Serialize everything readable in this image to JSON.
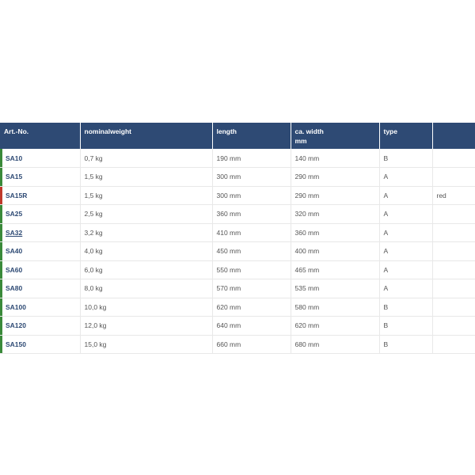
{
  "colors": {
    "header_bg": "#2e4a74",
    "stripe_green": "#3a8a3a",
    "stripe_red": "#c0392b"
  },
  "table": {
    "headers": [
      [
        "Art.-No."
      ],
      [
        "nominalweight"
      ],
      [
        "length"
      ],
      [
        "ca. width",
        "mm"
      ],
      [
        "type"
      ],
      [
        ""
      ]
    ],
    "rows": [
      {
        "art": "SA10",
        "weight": "0,7 kg",
        "length": "190 mm",
        "width": "140 mm",
        "type": "B",
        "note": "",
        "stripe": "green",
        "underline": false
      },
      {
        "art": "SA15",
        "weight": "1,5 kg",
        "length": "300 mm",
        "width": "290 mm",
        "type": "A",
        "note": "",
        "stripe": "green",
        "underline": false
      },
      {
        "art": "SA15R",
        "weight": "1,5 kg",
        "length": "300 mm",
        "width": "290 mm",
        "type": "A",
        "note": "red",
        "stripe": "red",
        "underline": false
      },
      {
        "art": "SA25",
        "weight": "2,5 kg",
        "length": "360 mm",
        "width": "320 mm",
        "type": "A",
        "note": "",
        "stripe": "green",
        "underline": false
      },
      {
        "art": "SA32",
        "weight": "3,2 kg",
        "length": "410 mm",
        "width": "360 mm",
        "type": "A",
        "note": "",
        "stripe": "green",
        "underline": true
      },
      {
        "art": "SA40",
        "weight": "4,0 kg",
        "length": "450 mm",
        "width": "400 mm",
        "type": "A",
        "note": "",
        "stripe": "green",
        "underline": false
      },
      {
        "art": "SA60",
        "weight": "6,0 kg",
        "length": "550 mm",
        "width": "465 mm",
        "type": "A",
        "note": "",
        "stripe": "green",
        "underline": false
      },
      {
        "art": "SA80",
        "weight": "8,0 kg",
        "length": "570 mm",
        "width": "535 mm",
        "type": "A",
        "note": "",
        "stripe": "green",
        "underline": false
      },
      {
        "art": "SA100",
        "weight": "10,0 kg",
        "length": "620 mm",
        "width": "580 mm",
        "type": "B",
        "note": "",
        "stripe": "green",
        "underline": false
      },
      {
        "art": "SA120",
        "weight": "12,0 kg",
        "length": "640 mm",
        "width": "620 mm",
        "type": "B",
        "note": "",
        "stripe": "green",
        "underline": false
      },
      {
        "art": "SA150",
        "weight": "15,0 kg",
        "length": "660 mm",
        "width": "680 mm",
        "type": "B",
        "note": "",
        "stripe": "green",
        "underline": false
      }
    ]
  }
}
